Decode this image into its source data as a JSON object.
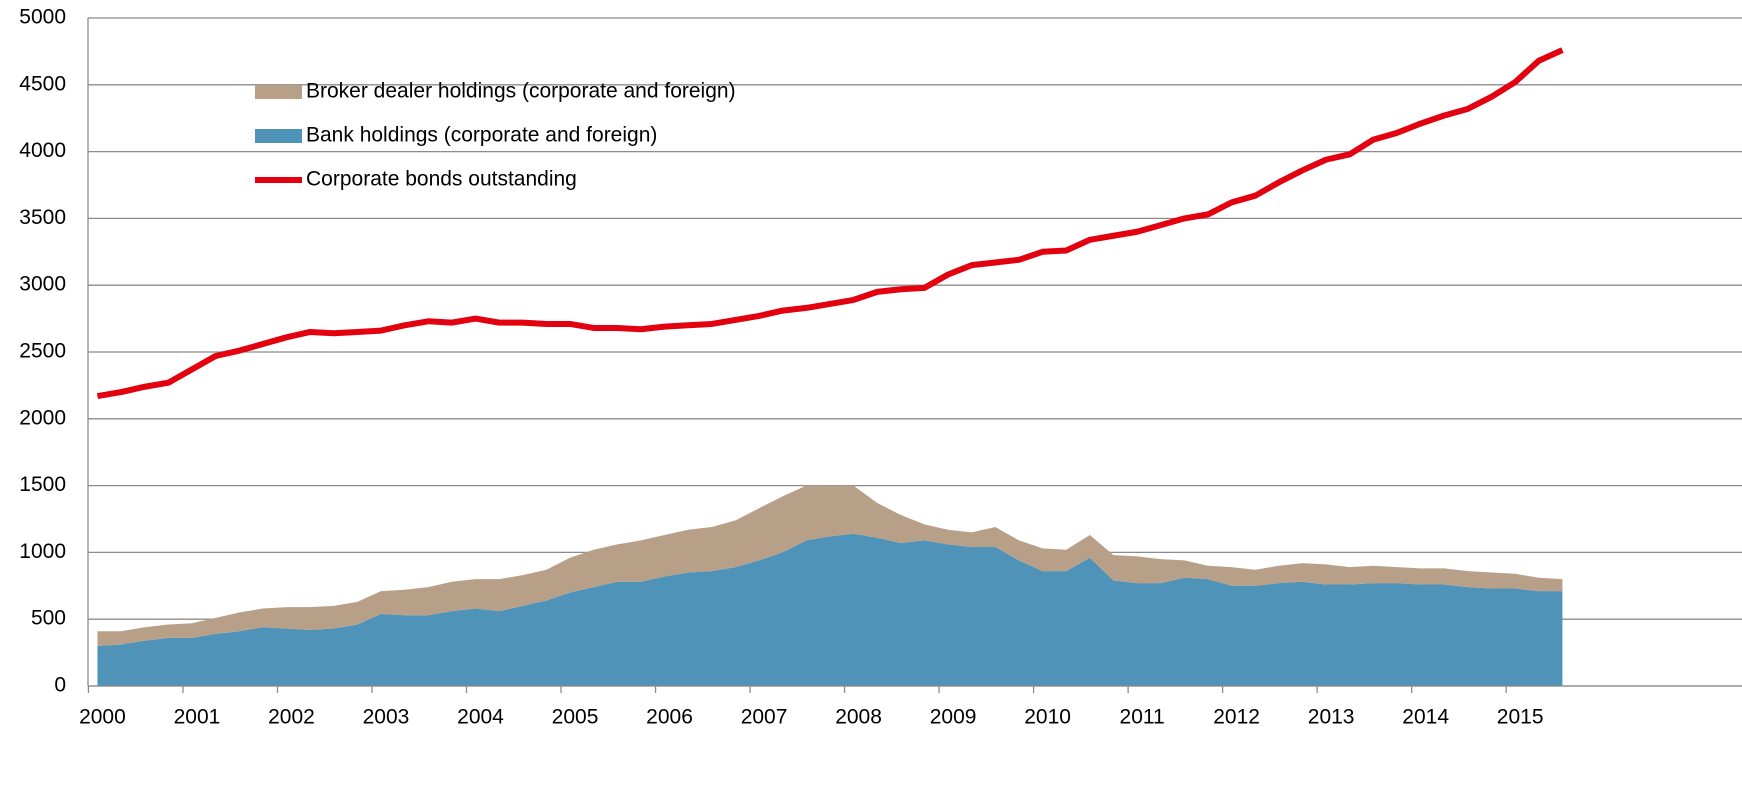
{
  "chart_data": {
    "type": "area_line",
    "x": [
      2000,
      2000.25,
      2000.5,
      2000.75,
      2001,
      2001.25,
      2001.5,
      2001.75,
      2002,
      2002.25,
      2002.5,
      2002.75,
      2003,
      2003.25,
      2003.5,
      2003.75,
      2004,
      2004.25,
      2004.5,
      2004.75,
      2005,
      2005.25,
      2005.5,
      2005.75,
      2006,
      2006.25,
      2006.5,
      2006.75,
      2007,
      2007.25,
      2007.5,
      2007.75,
      2008,
      2008.25,
      2008.5,
      2008.75,
      2009,
      2009.25,
      2009.5,
      2009.75,
      2010,
      2010.25,
      2010.5,
      2010.75,
      2011,
      2011.25,
      2011.5,
      2011.75,
      2012,
      2012.25,
      2012.5,
      2012.75,
      2013,
      2013.25,
      2013.5,
      2013.75,
      2014,
      2014.25,
      2014.5,
      2014.75,
      2015,
      2015.25,
      2015.5
    ],
    "series": [
      {
        "name": "Bank holdings (corporate and foreign)",
        "color": "#4f93b8",
        "kind": "area",
        "values": [
          300,
          310,
          340,
          360,
          360,
          390,
          410,
          440,
          430,
          420,
          430,
          460,
          540,
          530,
          530,
          560,
          580,
          560,
          600,
          640,
          700,
          740,
          780,
          780,
          820,
          850,
          860,
          890,
          940,
          1000,
          1090,
          1120,
          1140,
          1110,
          1070,
          1090,
          1060,
          1040,
          1040,
          940,
          860,
          860,
          960,
          790,
          770,
          770,
          810,
          800,
          750,
          750,
          770,
          780,
          760,
          760,
          770,
          770,
          760,
          760,
          740,
          730,
          730,
          710,
          710
        ]
      },
      {
        "name": "Broker dealer holdings (corporate and foreign)",
        "color": "#b8a088",
        "kind": "area",
        "values": [
          110,
          100,
          100,
          100,
          110,
          120,
          140,
          140,
          160,
          170,
          170,
          170,
          170,
          190,
          210,
          220,
          220,
          240,
          230,
          230,
          260,
          280,
          280,
          310,
          310,
          320,
          330,
          350,
          390,
          420,
          410,
          380,
          360,
          260,
          210,
          120,
          110,
          110,
          150,
          150,
          170,
          160,
          170,
          190,
          200,
          180,
          130,
          100,
          140,
          120,
          130,
          140,
          150,
          130,
          130,
          120,
          120,
          120,
          120,
          120,
          110,
          100,
          90
        ]
      },
      {
        "name": "Corporate bonds outstanding",
        "color": "#e3000f",
        "kind": "line",
        "values": [
          2170,
          2200,
          2240,
          2270,
          2370,
          2470,
          2510,
          2560,
          2610,
          2650,
          2640,
          2650,
          2660,
          2700,
          2730,
          2720,
          2750,
          2720,
          2720,
          2710,
          2710,
          2680,
          2680,
          2670,
          2690,
          2700,
          2710,
          2740,
          2770,
          2810,
          2830,
          2860,
          2890,
          2950,
          2970,
          2980,
          3080,
          3150,
          3170,
          3190,
          3250,
          3260,
          3340,
          3370,
          3400,
          3450,
          3500,
          3530,
          3620,
          3670,
          3770,
          3860,
          3940,
          3980,
          4090,
          4140,
          4210,
          4270,
          4320,
          4410,
          4520,
          4680,
          4760
        ]
      }
    ],
    "legend_order": [
      1,
      0,
      2
    ],
    "xlim": [
      1999.9,
      2017.4
    ],
    "xticks": [
      2000,
      2001,
      2002,
      2003,
      2004,
      2005,
      2006,
      2007,
      2008,
      2009,
      2010,
      2011,
      2012,
      2013,
      2014,
      2015
    ],
    "ylim": [
      0,
      5000
    ],
    "yticks": [
      0,
      500,
      1000,
      1500,
      2000,
      2500,
      3000,
      3500,
      4000,
      4500,
      5000
    ],
    "grid": true
  }
}
